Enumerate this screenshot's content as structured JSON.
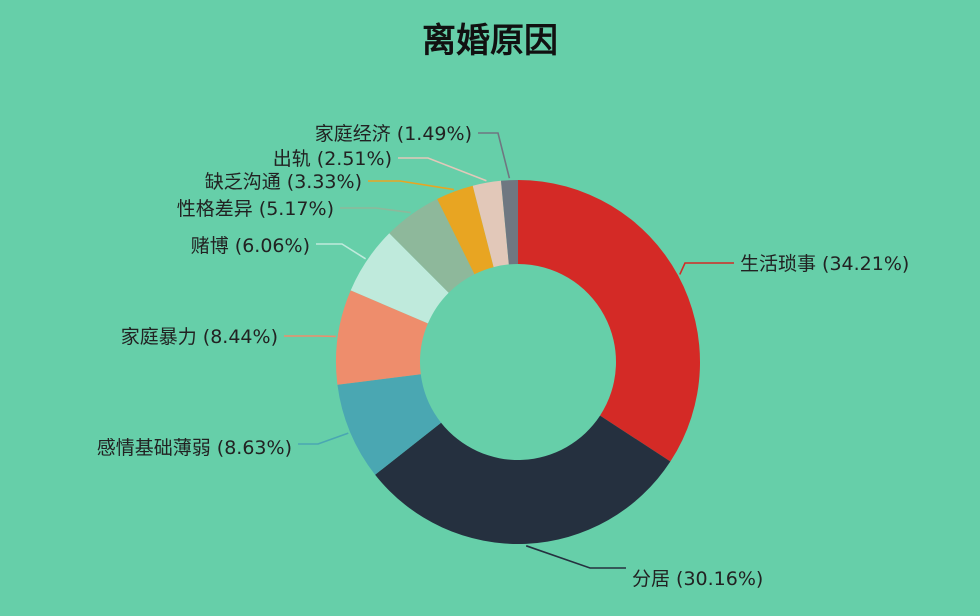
{
  "chart_data": {
    "type": "pie",
    "variant": "donut",
    "title": "离婚原因",
    "legend": "none",
    "slices": [
      {
        "label": "生活琐事",
        "value": 34.21,
        "display": "生活琐事 (34.21%)",
        "color": "#d42a26"
      },
      {
        "label": "分居",
        "value": 30.16,
        "display": "分居 (30.16%)",
        "color": "#25303f"
      },
      {
        "label": "感情基础薄弱",
        "value": 8.63,
        "display": "感情基础薄弱 (8.63%)",
        "color": "#4aa7b2"
      },
      {
        "label": "家庭暴力",
        "value": 8.44,
        "display": "家庭暴力 (8.44%)",
        "color": "#ee8d6c"
      },
      {
        "label": "赌博",
        "value": 6.06,
        "display": "赌博 (6.06%)",
        "color": "#bfeadc"
      },
      {
        "label": "性格差异",
        "value": 5.17,
        "display": "性格差异 (5.17%)",
        "color": "#8eb89b"
      },
      {
        "label": "缺乏沟通",
        "value": 3.33,
        "display": "缺乏沟通 (3.33%)",
        "color": "#e8a522"
      },
      {
        "label": "出轨",
        "value": 2.51,
        "display": "出轨 (2.51%)",
        "color": "#e2c8b9"
      },
      {
        "label": "家庭经济",
        "value": 1.49,
        "display": "家庭经济 (1.49%)",
        "color": "#6f7781"
      }
    ]
  }
}
